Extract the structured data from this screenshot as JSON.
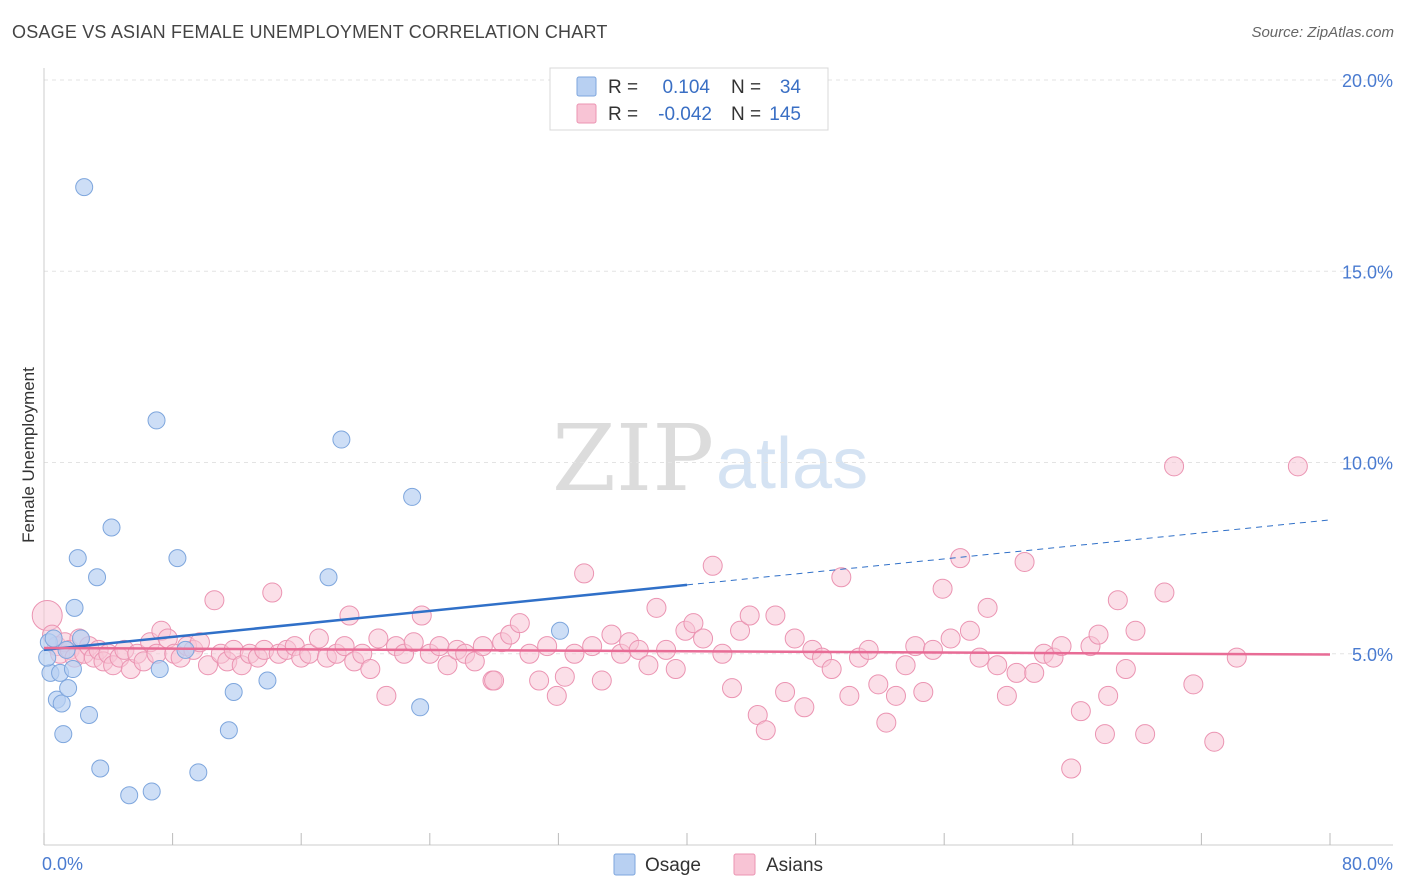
{
  "title": "OSAGE VS ASIAN FEMALE UNEMPLOYMENT CORRELATION CHART",
  "source": "Source: ZipAtlas.com",
  "watermark": {
    "zip": "ZIP",
    "atlas": "atlas"
  },
  "colors": {
    "osage_fill": "#b8d0f2",
    "osage_stroke": "#7ea6dd",
    "osage_line": "#3070c8",
    "asian_fill": "#f8c4d5",
    "asian_stroke": "#eb94b2",
    "asian_line": "#e86c96",
    "tick_text": "#4a7bd0",
    "grid": "#e3e3e3"
  },
  "legend_top": {
    "rows": [
      {
        "r_label": "R =",
        "r_value": "0.104",
        "n_label": "N =",
        "n_value": "34"
      },
      {
        "r_label": "R =",
        "r_value": "-0.042",
        "n_label": "N =",
        "n_value": "145"
      }
    ]
  },
  "legend_bottom": {
    "osage": "Osage",
    "asians": "Asians"
  },
  "chart_data": {
    "type": "scatter",
    "title": "OSAGE VS ASIAN FEMALE UNEMPLOYMENT CORRELATION CHART",
    "xlabel": "",
    "ylabel": "Female Unemployment",
    "xlim": [
      0,
      80
    ],
    "ylim": [
      0,
      20
    ],
    "x_tick_labels": [
      "0.0%",
      "80.0%"
    ],
    "y_ticks": [
      5,
      10,
      15,
      20
    ],
    "y_tick_labels": [
      "5.0%",
      "10.0%",
      "15.0%",
      "20.0%"
    ],
    "grid": true,
    "series": [
      {
        "name": "Osage",
        "r": 0.104,
        "n": 34,
        "trend": {
          "x": [
            0,
            40
          ],
          "y": [
            5.1,
            6.8
          ],
          "dashed_to": [
            80,
            8.5
          ]
        },
        "points": [
          [
            0.3,
            5.3
          ],
          [
            0.4,
            4.5
          ],
          [
            0.6,
            5.4
          ],
          [
            0.8,
            3.8
          ],
          [
            1.0,
            4.5
          ],
          [
            1.1,
            3.7
          ],
          [
            1.2,
            2.9
          ],
          [
            1.4,
            5.1
          ],
          [
            1.5,
            4.1
          ],
          [
            1.8,
            4.6
          ],
          [
            1.9,
            6.2
          ],
          [
            2.1,
            7.5
          ],
          [
            2.3,
            5.4
          ],
          [
            2.5,
            17.2
          ],
          [
            2.8,
            3.4
          ],
          [
            3.3,
            7.0
          ],
          [
            3.5,
            2.0
          ],
          [
            4.2,
            8.3
          ],
          [
            5.3,
            1.3
          ],
          [
            6.7,
            1.4
          ],
          [
            7.0,
            11.1
          ],
          [
            7.2,
            4.6
          ],
          [
            8.3,
            7.5
          ],
          [
            8.8,
            5.1
          ],
          [
            9.6,
            1.9
          ],
          [
            11.5,
            3.0
          ],
          [
            11.8,
            4.0
          ],
          [
            13.9,
            4.3
          ],
          [
            17.7,
            7.0
          ],
          [
            18.5,
            10.6
          ],
          [
            22.9,
            9.1
          ],
          [
            23.4,
            3.6
          ],
          [
            32.1,
            5.6
          ],
          [
            0.2,
            4.9
          ]
        ]
      },
      {
        "name": "Asians",
        "r": -0.042,
        "n": 145,
        "trend": {
          "x": [
            0,
            80
          ],
          "y": [
            5.15,
            4.98
          ]
        },
        "points": [
          [
            0.2,
            6.0
          ],
          [
            0.5,
            5.5
          ],
          [
            0.8,
            5.2
          ],
          [
            1.0,
            5.0
          ],
          [
            1.3,
            5.3
          ],
          [
            1.6,
            5.1
          ],
          [
            1.9,
            4.9
          ],
          [
            2.2,
            5.4
          ],
          [
            2.5,
            5.0
          ],
          [
            2.8,
            5.2
          ],
          [
            3.1,
            4.9
          ],
          [
            3.4,
            5.1
          ],
          [
            3.7,
            4.8
          ],
          [
            4.0,
            5.0
          ],
          [
            4.3,
            4.7
          ],
          [
            4.7,
            4.9
          ],
          [
            5.0,
            5.1
          ],
          [
            5.4,
            4.6
          ],
          [
            5.8,
            5.0
          ],
          [
            6.2,
            4.8
          ],
          [
            6.6,
            5.3
          ],
          [
            7.0,
            5.0
          ],
          [
            7.3,
            5.6
          ],
          [
            7.7,
            5.4
          ],
          [
            8.1,
            5.0
          ],
          [
            8.5,
            4.9
          ],
          [
            8.9,
            5.2
          ],
          [
            9.3,
            5.1
          ],
          [
            9.7,
            5.3
          ],
          [
            10.2,
            4.7
          ],
          [
            10.6,
            6.4
          ],
          [
            11.0,
            5.0
          ],
          [
            11.4,
            4.8
          ],
          [
            11.8,
            5.1
          ],
          [
            12.3,
            4.7
          ],
          [
            12.8,
            5.0
          ],
          [
            13.3,
            4.9
          ],
          [
            13.7,
            5.1
          ],
          [
            14.2,
            6.6
          ],
          [
            14.6,
            5.0
          ],
          [
            15.1,
            5.1
          ],
          [
            15.6,
            5.2
          ],
          [
            16.0,
            4.9
          ],
          [
            16.5,
            5.0
          ],
          [
            17.1,
            5.4
          ],
          [
            17.6,
            4.9
          ],
          [
            18.2,
            5.0
          ],
          [
            18.7,
            5.2
          ],
          [
            19.3,
            4.8
          ],
          [
            19.8,
            5.0
          ],
          [
            20.3,
            4.6
          ],
          [
            20.8,
            5.4
          ],
          [
            21.3,
            3.9
          ],
          [
            21.9,
            5.2
          ],
          [
            22.4,
            5.0
          ],
          [
            23.0,
            5.3
          ],
          [
            23.5,
            6.0
          ],
          [
            24.0,
            5.0
          ],
          [
            24.6,
            5.2
          ],
          [
            25.1,
            4.7
          ],
          [
            25.7,
            5.1
          ],
          [
            26.2,
            5.0
          ],
          [
            26.8,
            4.8
          ],
          [
            27.3,
            5.2
          ],
          [
            27.9,
            4.3
          ],
          [
            28.5,
            5.3
          ],
          [
            29.0,
            5.5
          ],
          [
            29.6,
            5.8
          ],
          [
            30.2,
            5.0
          ],
          [
            30.8,
            4.3
          ],
          [
            31.3,
            5.2
          ],
          [
            31.9,
            3.9
          ],
          [
            32.4,
            4.4
          ],
          [
            33.0,
            5.0
          ],
          [
            33.6,
            7.1
          ],
          [
            34.1,
            5.2
          ],
          [
            34.7,
            4.3
          ],
          [
            35.3,
            5.5
          ],
          [
            35.9,
            5.0
          ],
          [
            36.4,
            5.3
          ],
          [
            37.0,
            5.1
          ],
          [
            37.6,
            4.7
          ],
          [
            38.1,
            6.2
          ],
          [
            38.7,
            5.1
          ],
          [
            39.3,
            4.6
          ],
          [
            39.9,
            5.6
          ],
          [
            40.4,
            5.8
          ],
          [
            41.0,
            5.4
          ],
          [
            41.6,
            7.3
          ],
          [
            42.2,
            5.0
          ],
          [
            42.8,
            4.1
          ],
          [
            43.3,
            5.6
          ],
          [
            43.9,
            6.0
          ],
          [
            44.4,
            3.4
          ],
          [
            44.9,
            3.0
          ],
          [
            45.5,
            6.0
          ],
          [
            46.1,
            4.0
          ],
          [
            46.7,
            5.4
          ],
          [
            47.3,
            3.6
          ],
          [
            47.8,
            5.1
          ],
          [
            48.4,
            4.9
          ],
          [
            49.0,
            4.6
          ],
          [
            49.6,
            7.0
          ],
          [
            50.1,
            3.9
          ],
          [
            50.7,
            4.9
          ],
          [
            51.3,
            5.1
          ],
          [
            51.9,
            4.2
          ],
          [
            52.4,
            3.2
          ],
          [
            53.0,
            3.9
          ],
          [
            53.6,
            4.7
          ],
          [
            54.2,
            5.2
          ],
          [
            54.7,
            4.0
          ],
          [
            55.3,
            5.1
          ],
          [
            55.9,
            6.7
          ],
          [
            56.4,
            5.4
          ],
          [
            57.0,
            7.5
          ],
          [
            57.6,
            5.6
          ],
          [
            58.2,
            4.9
          ],
          [
            58.7,
            6.2
          ],
          [
            59.3,
            4.7
          ],
          [
            59.9,
            3.9
          ],
          [
            60.5,
            4.5
          ],
          [
            61.0,
            7.4
          ],
          [
            61.6,
            4.5
          ],
          [
            62.2,
            5.0
          ],
          [
            62.8,
            4.9
          ],
          [
            63.3,
            5.2
          ],
          [
            63.9,
            2.0
          ],
          [
            64.5,
            3.5
          ],
          [
            65.1,
            5.2
          ],
          [
            65.6,
            5.5
          ],
          [
            66.2,
            3.9
          ],
          [
            66.8,
            6.4
          ],
          [
            67.3,
            4.6
          ],
          [
            67.9,
            5.6
          ],
          [
            68.5,
            2.9
          ],
          [
            69.7,
            6.6
          ],
          [
            70.3,
            9.9
          ],
          [
            71.5,
            4.2
          ],
          [
            72.8,
            2.7
          ],
          [
            74.2,
            4.9
          ],
          [
            78.0,
            9.9
          ],
          [
            66.0,
            2.9
          ],
          [
            28.0,
            4.3
          ],
          [
            19.0,
            6.0
          ]
        ]
      }
    ]
  }
}
